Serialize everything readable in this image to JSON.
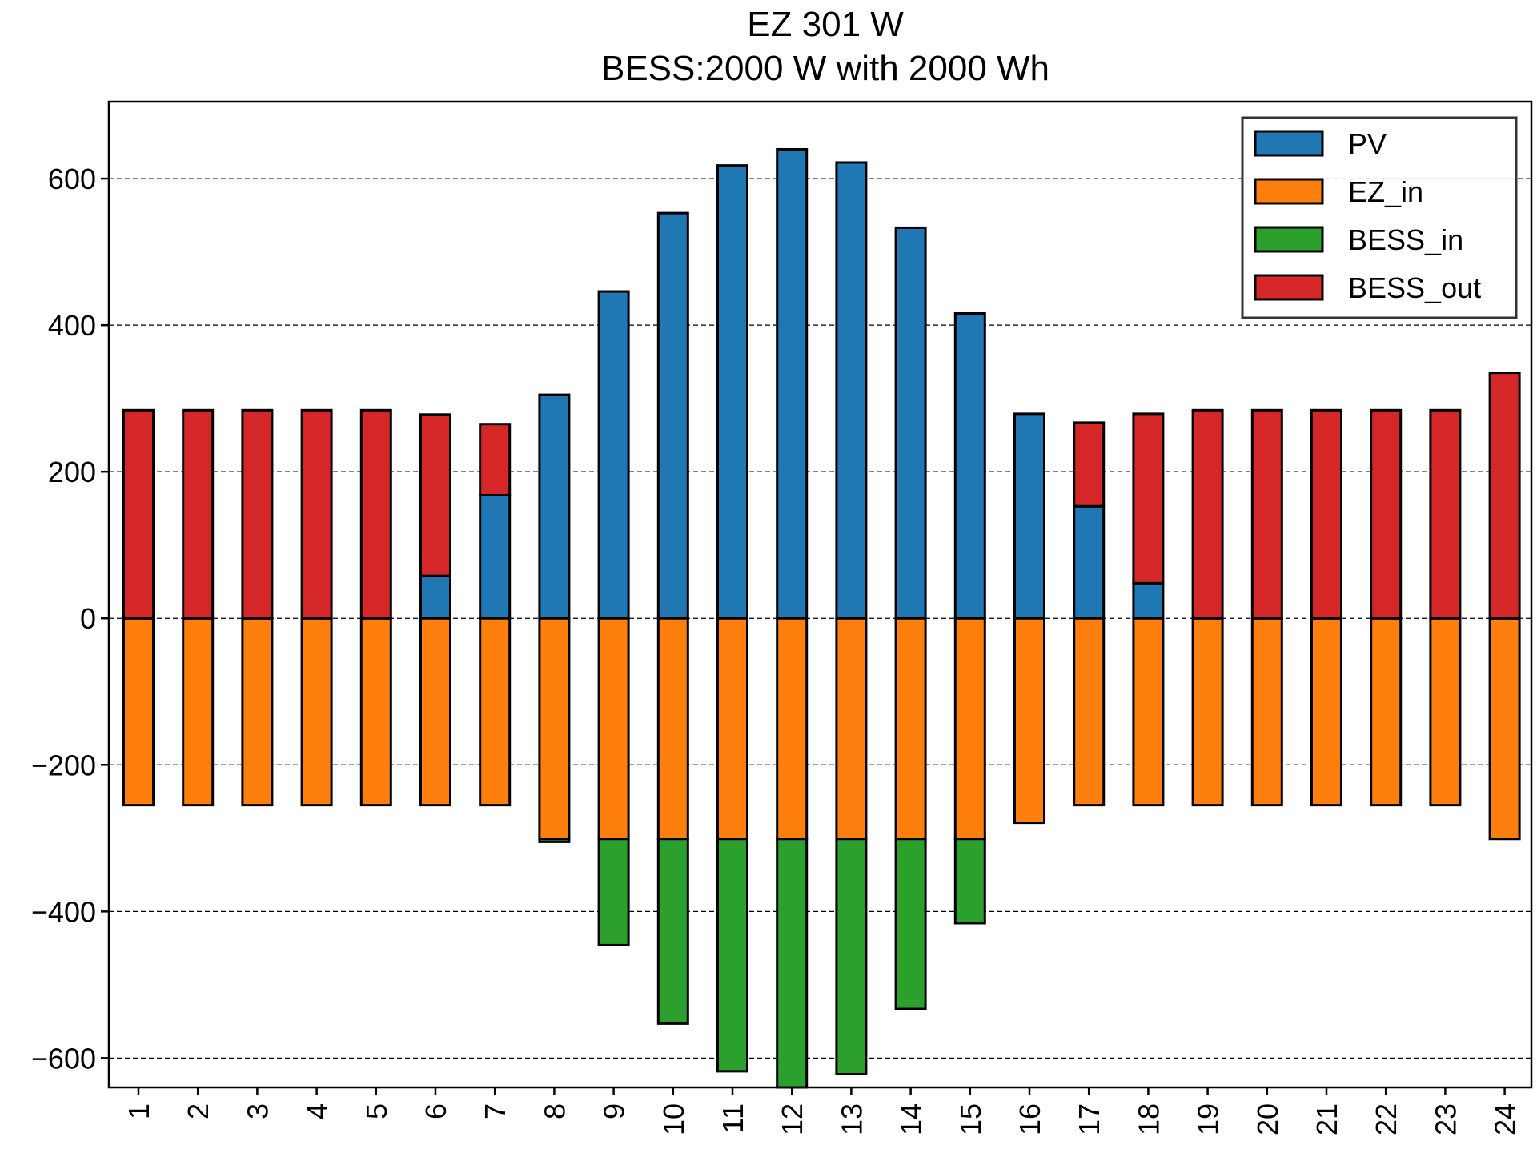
{
  "chart_data": {
    "type": "bar",
    "stacked": true,
    "title": "EZ 301 W",
    "subtitle": "BESS:2000 W with 2000 Wh",
    "xlabel": "",
    "ylabel": "",
    "ylim": [
      -640,
      705
    ],
    "yticks": [
      -600,
      -400,
      -200,
      0,
      200,
      400,
      600
    ],
    "grid": "horizontal dashed",
    "legend_position": "top-right",
    "categories": [
      "1",
      "2",
      "3",
      "4",
      "5",
      "6",
      "7",
      "8",
      "9",
      "10",
      "11",
      "12",
      "13",
      "14",
      "15",
      "16",
      "17",
      "18",
      "19",
      "20",
      "21",
      "22",
      "23",
      "24"
    ],
    "series": [
      {
        "name": "PV",
        "color": "#1f77b4",
        "values": [
          0,
          0,
          0,
          0,
          0,
          58,
          168,
          305,
          446,
          553,
          618,
          640,
          622,
          533,
          416,
          279,
          153,
          48,
          0,
          0,
          0,
          0,
          0,
          0
        ]
      },
      {
        "name": "EZ_in",
        "color": "#ff7f0e",
        "values": [
          -255,
          -255,
          -255,
          -255,
          -255,
          -255,
          -255,
          -301,
          -301,
          -301,
          -301,
          -301,
          -301,
          -301,
          -301,
          -279,
          -255,
          -255,
          -255,
          -255,
          -255,
          -255,
          -255,
          -301
        ]
      },
      {
        "name": "BESS_in",
        "color": "#2ca02c",
        "values": [
          0,
          0,
          0,
          0,
          0,
          0,
          0,
          -4,
          -145,
          -252,
          -317,
          -339,
          -321,
          -232,
          -115,
          0,
          0,
          0,
          0,
          0,
          0,
          0,
          0,
          0
        ]
      },
      {
        "name": "BESS_out",
        "color": "#d62728",
        "values": [
          284,
          284,
          284,
          284,
          284,
          220,
          97,
          0,
          0,
          0,
          0,
          0,
          0,
          0,
          0,
          0,
          114,
          231,
          284,
          284,
          284,
          284,
          284,
          335
        ]
      }
    ]
  }
}
